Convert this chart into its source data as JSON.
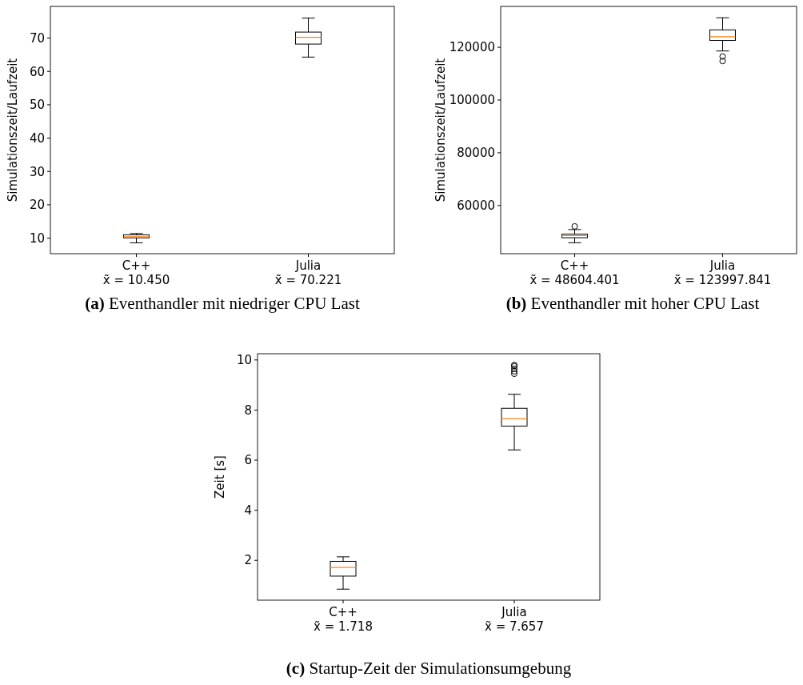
{
  "chart_data": [
    {
      "type": "box",
      "title": "(a) Eventhandler mit niedriger CPU Last",
      "ylabel": "Simulationszeit/Laufzeit",
      "categories": [
        "C++\nx̃ = 10.450",
        "Julia\nx̃ = 70.221"
      ],
      "ylim": [
        5.35,
        79.5
      ],
      "yticks": [
        10,
        20,
        30,
        40,
        50,
        60,
        70
      ],
      "grid": false,
      "boxes": [
        {
          "low": 8.6,
          "q1": 10.1,
          "median": 10.45,
          "q3": 11.0,
          "high": 11.4
        },
        {
          "low": 64.3,
          "q1": 68.2,
          "median": 70.221,
          "q3": 71.8,
          "high": 76.0
        }
      ]
    },
    {
      "type": "box",
      "title": "(b) Eventhandler mit hoher CPU Last",
      "ylabel": "Simulationszeit/Laufzeit",
      "categories": [
        "C++\nx̃ = 48604.401",
        "Julia\nx̃ = 123997.841"
      ],
      "ylim": [
        41750,
        135500
      ],
      "yticks": [
        60000,
        80000,
        100000,
        120000
      ],
      "grid": false,
      "boxes": [
        {
          "low": 45900,
          "q1": 47800,
          "median": 48604.401,
          "q3": 49150,
          "high": 50900,
          "outliers": [
            52100
          ]
        },
        {
          "low": 118600,
          "q1": 122600,
          "median": 123997.841,
          "q3": 126600,
          "high": 131200,
          "outliers": [
            116500,
            114800
          ]
        }
      ]
    },
    {
      "type": "box",
      "title": "(c) Startup-Zeit der Simulationsumgebung",
      "ylabel": "Zeit [s]",
      "categories": [
        "C++\nx̃ = 1.718",
        "Julia\nx̃ = 7.657"
      ],
      "ylim": [
        0.41,
        10.25
      ],
      "yticks": [
        2,
        4,
        6,
        8,
        10
      ],
      "grid": false,
      "boxes": [
        {
          "low": 0.85,
          "q1": 1.37,
          "median": 1.718,
          "q3": 1.96,
          "high": 2.14
        },
        {
          "low": 6.41,
          "q1": 7.36,
          "median": 7.657,
          "q3": 8.07,
          "high": 8.63,
          "outliers": [
            9.45,
            9.55,
            9.65,
            9.75,
            9.8
          ]
        }
      ]
    }
  ]
}
